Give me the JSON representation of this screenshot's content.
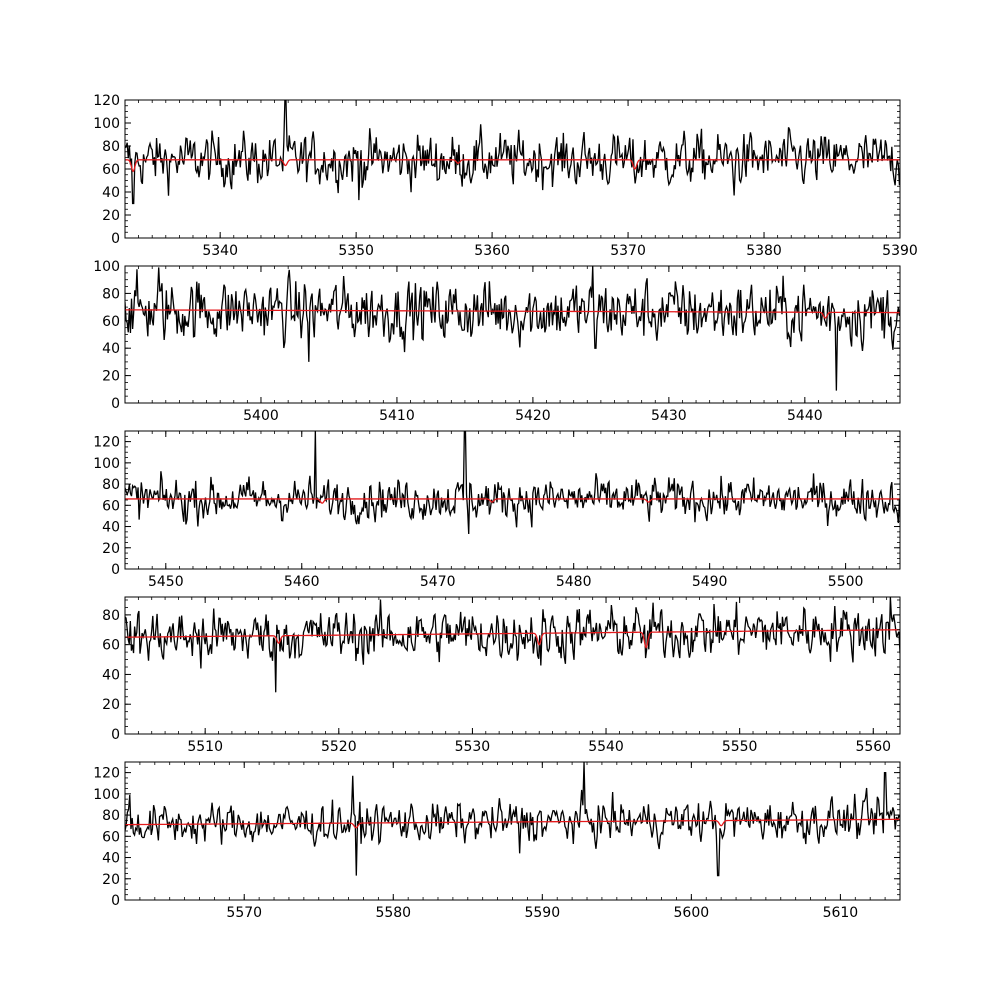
{
  "colors": {
    "observed": "#000000",
    "model": "#e41a1c",
    "axes": "#000000",
    "background": "#ffffff"
  },
  "chart_data": [
    {
      "type": "line",
      "title": "",
      "xlabel": "",
      "ylabel": "",
      "xlim": [
        5333,
        5390
      ],
      "ylim": [
        0,
        120
      ],
      "xticks": [
        5340,
        5350,
        5360,
        5370,
        5380,
        5390
      ],
      "yticks": [
        0,
        20,
        40,
        60,
        80,
        100,
        120
      ],
      "grid": false,
      "model_level": [
        [
          5333,
          68
        ],
        [
          5390,
          68
        ]
      ],
      "model_dips": [
        [
          5333.6,
          58
        ],
        [
          5344.8,
          63
        ],
        [
          5357.5,
          65
        ],
        [
          5370.5,
          60
        ]
      ],
      "spikes": [
        [
          5344.8,
          120
        ],
        [
          5350.2,
          33
        ],
        [
          5333.6,
          30
        ],
        [
          5377.8,
          37
        ]
      ],
      "noise_mean": 67,
      "noise_amp": 13
    },
    {
      "type": "line",
      "title": "",
      "xlabel": "",
      "ylabel": "",
      "xlim": [
        5390,
        5447
      ],
      "ylim": [
        0,
        100
      ],
      "xticks": [
        5400,
        5410,
        5420,
        5430,
        5440
      ],
      "yticks": [
        0,
        20,
        40,
        60,
        80,
        100
      ],
      "grid": false,
      "model_level": [
        [
          5390,
          68
        ],
        [
          5447,
          66
        ]
      ],
      "model_dips": [
        [
          5441.5,
          62
        ]
      ],
      "spikes": [
        [
          5424.4,
          100
        ],
        [
          5403.5,
          30
        ],
        [
          5442.3,
          9
        ],
        [
          5392.5,
          99
        ],
        [
          5424.6,
          40
        ]
      ],
      "noise_mean": 66,
      "noise_amp": 13
    },
    {
      "type": "line",
      "title": "",
      "xlabel": "",
      "ylabel": "",
      "xlim": [
        5447,
        5504
      ],
      "ylim": [
        0,
        130
      ],
      "xticks": [
        5450,
        5460,
        5470,
        5480,
        5490,
        5500
      ],
      "yticks": [
        0,
        20,
        40,
        60,
        80,
        100,
        120
      ],
      "grid": false,
      "model_level": [
        [
          5447,
          66
        ],
        [
          5504,
          66
        ]
      ],
      "model_dips": [
        [
          5461.5,
          62
        ],
        [
          5474.0,
          63
        ],
        [
          5485.5,
          63
        ]
      ],
      "spikes": [
        [
          5461.0,
          130
        ],
        [
          5472.0,
          130
        ],
        [
          5472.3,
          33
        ],
        [
          5451.5,
          42
        ]
      ],
      "noise_mean": 65,
      "noise_amp": 11
    },
    {
      "type": "line",
      "title": "",
      "xlabel": "",
      "ylabel": "",
      "xlim": [
        5504,
        5562
      ],
      "ylim": [
        0,
        92
      ],
      "xticks": [
        5510,
        5520,
        5530,
        5540,
        5550,
        5560
      ],
      "yticks": [
        0,
        20,
        40,
        60,
        80
      ],
      "grid": false,
      "model_level": [
        [
          5504,
          65
        ],
        [
          5562,
          70
        ]
      ],
      "model_dips": [
        [
          5515.5,
          61
        ],
        [
          5535.0,
          60
        ],
        [
          5543.0,
          58
        ]
      ],
      "spikes": [
        [
          5515.3,
          28
        ],
        [
          5561.3,
          92
        ],
        [
          5509.7,
          44
        ],
        [
          5535.1,
          46
        ]
      ],
      "noise_mean": 67,
      "noise_amp": 10
    },
    {
      "type": "line",
      "title": "",
      "xlabel": "",
      "ylabel": "",
      "xlim": [
        5562,
        5614
      ],
      "ylim": [
        0,
        130
      ],
      "xticks": [
        5570,
        5580,
        5590,
        5600,
        5610
      ],
      "yticks": [
        0,
        20,
        40,
        60,
        80,
        100,
        120
      ],
      "grid": false,
      "model_level": [
        [
          5562,
          71
        ],
        [
          5614,
          76
        ]
      ],
      "model_dips": [
        [
          5577.5,
          68
        ],
        [
          5602.0,
          70
        ]
      ],
      "spikes": [
        [
          5577.3,
          117
        ],
        [
          5577.5,
          23
        ],
        [
          5592.8,
          130
        ],
        [
          5601.8,
          23
        ],
        [
          5613.0,
          120
        ],
        [
          5588.5,
          44
        ],
        [
          5562.3,
          99
        ]
      ],
      "noise_mean": 73,
      "noise_amp": 11
    }
  ]
}
